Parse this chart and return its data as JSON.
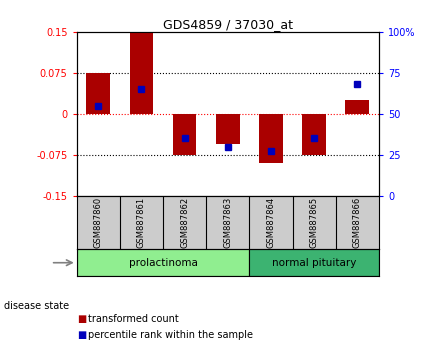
{
  "title": "GDS4859 / 37030_at",
  "samples": [
    "GSM887860",
    "GSM887861",
    "GSM887862",
    "GSM887863",
    "GSM887864",
    "GSM887865",
    "GSM887866"
  ],
  "red_values": [
    0.075,
    0.15,
    -0.075,
    -0.055,
    -0.09,
    -0.075,
    0.025
  ],
  "blue_percentiles": [
    55,
    65,
    35,
    30,
    27,
    35,
    68
  ],
  "groups": [
    {
      "label": "prolactinoma",
      "indices": [
        0,
        1,
        2,
        3
      ],
      "color": "#90EE90"
    },
    {
      "label": "normal pituitary",
      "indices": [
        4,
        5,
        6
      ],
      "color": "#3CB371"
    }
  ],
  "ylim": [
    -0.15,
    0.15
  ],
  "yticks_left": [
    -0.15,
    -0.075,
    0,
    0.075,
    0.15
  ],
  "yticks_left_labels": [
    "-0.15",
    "-0.075",
    "0",
    "0.075",
    "0.15"
  ],
  "yticks_right_pct": [
    0,
    25,
    50,
    75,
    100
  ],
  "bar_width": 0.55,
  "red_color": "#AA0000",
  "blue_color": "#0000BB",
  "plot_bg_color": "#ffffff",
  "label_bg_color": "#cccccc",
  "legend_red": "transformed count",
  "legend_blue": "percentile rank within the sample",
  "disease_state_label": "disease state"
}
